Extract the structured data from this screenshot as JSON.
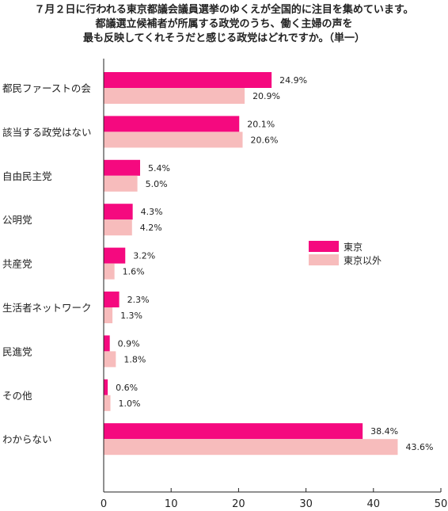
{
  "chart_data": {
    "type": "bar",
    "orientation": "horizontal",
    "title": [
      "７月２日に行われる東京都議会議員選挙のゆくえが全国的に注目を集めています。",
      "都議選立候補者が所属する政党のうち、働く主婦の声を",
      "最も反映してくれそうだと感じる政党はどれですか。（単一）"
    ],
    "categories": [
      "都民ファーストの会",
      "該当する政党はない",
      "自由民主党",
      "公明党",
      "共産党",
      "生活者ネットワーク",
      "民進党",
      "その他",
      "わからない"
    ],
    "series": [
      {
        "name": "東京",
        "color": "#f5097f",
        "values": [
          24.9,
          20.1,
          5.4,
          4.3,
          3.2,
          2.3,
          0.9,
          0.6,
          38.4
        ],
        "labels": [
          "24.9%",
          "20.1%",
          "5.4%",
          "4.3%",
          "3.2%",
          "2.3%",
          "0.9%",
          "0.6%",
          "38.4%"
        ]
      },
      {
        "name": "東京以外",
        "color": "#f7bcbc",
        "values": [
          20.9,
          20.6,
          5.0,
          4.2,
          1.6,
          1.3,
          1.8,
          1.0,
          43.6
        ],
        "labels": [
          "20.9%",
          "20.6%",
          "5.0%",
          "4.2%",
          "1.6%",
          "1.3%",
          "1.8%",
          "1.0%",
          "43.6%"
        ]
      }
    ],
    "xlim": [
      0,
      50
    ],
    "xticks": [
      0,
      10,
      20,
      30,
      40,
      50
    ],
    "xtick_labels": [
      "0",
      "10",
      "20",
      "30",
      "40",
      "50"
    ],
    "xlabel": "",
    "ylabel": "",
    "grid": false,
    "legend_position": "right-middle"
  }
}
